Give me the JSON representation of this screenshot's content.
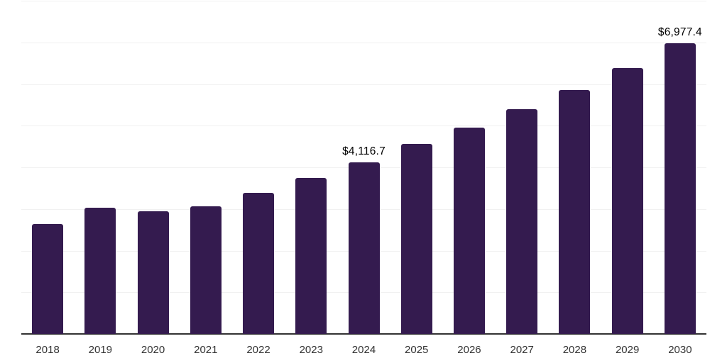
{
  "chart_data": {
    "type": "bar",
    "title": "",
    "xlabel": "",
    "ylabel": "",
    "categories": [
      "2018",
      "2019",
      "2020",
      "2021",
      "2022",
      "2023",
      "2024",
      "2025",
      "2026",
      "2027",
      "2028",
      "2029",
      "2030"
    ],
    "values": [
      2645,
      3030,
      2945,
      3057,
      3380,
      3737,
      4116.7,
      4565,
      4950,
      5392,
      5860,
      6375,
      6977.4
    ],
    "value_labels": [
      "",
      "",
      "",
      "",
      "",
      "",
      "$4,116.7",
      "",
      "",
      "",
      "",
      "",
      "$6,977.4"
    ],
    "labeled_points_note": "only 2024 and 2030 carry visible data labels; other values estimated from bar heights",
    "ylim": [
      0,
      8000
    ],
    "gridline_step": 1000,
    "grid": "horizontal",
    "legend": "none",
    "y_axis_tick_labels_visible": false,
    "colors": {
      "bar": "#341b4f",
      "axis": "#333333",
      "gridline": "#f1f1f1",
      "tick_label": "#333333",
      "value_label": "#000000",
      "background": "#ffffff"
    }
  }
}
